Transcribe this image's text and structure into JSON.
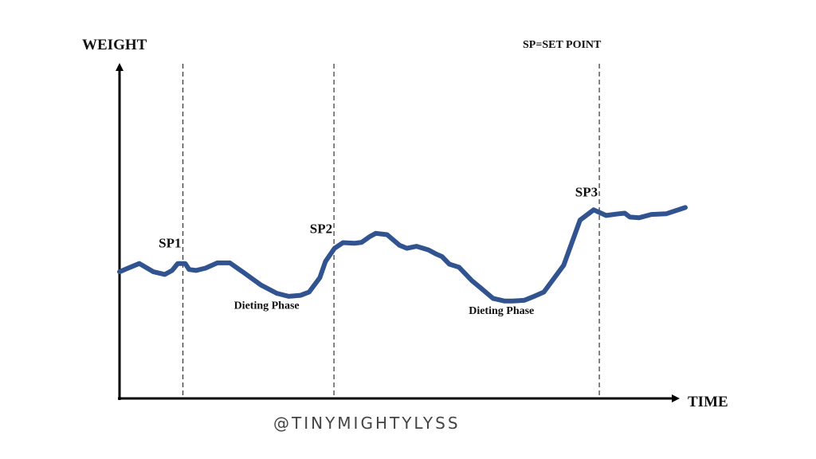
{
  "chart_data": {
    "type": "line",
    "ylabel": "WEIGHT",
    "xlabel": "TIME",
    "legend_note": "SP=SET POINT",
    "watermark": "@TINYMIGHTYLYSS",
    "line_color": "#31538F",
    "axis_color": "#000000",
    "grid": false,
    "xlim": [
      0,
      100
    ],
    "ylim": [
      0,
      100
    ],
    "set_points": [
      {
        "label": "SP1",
        "x": 11.2
      },
      {
        "label": "SP2",
        "x": 37.9
      },
      {
        "label": "SP3",
        "x": 84.8
      }
    ],
    "phase_labels": [
      {
        "label": "Dieting Phase",
        "x": 26,
        "y": 27
      },
      {
        "label": "Dieting Phase",
        "x": 67.5,
        "y": 25.5
      }
    ],
    "series": [
      {
        "x": [
          0,
          1.5,
          3.5,
          6,
          8,
          9.3,
          10.3,
          11,
          11.6,
          12.3,
          13.5,
          15.2,
          17.3,
          19.5,
          22,
          25,
          27.8,
          29.9,
          32,
          33.5,
          35.4,
          36.4,
          38,
          39.5,
          41.5,
          42.8,
          44.3,
          45.3,
          47.3,
          49.5,
          50.8,
          52.5,
          54.6,
          55.8,
          57,
          58.3,
          60,
          62.3,
          64,
          66,
          68,
          69.5,
          71.5,
          73,
          75,
          78.5,
          81.4,
          83.8,
          86,
          88.2,
          89.3,
          90.2,
          91.8,
          94,
          96.6,
          100
        ],
        "y": [
          38.2,
          39.3,
          40.7,
          38.2,
          37.4,
          38.6,
          40.7,
          40.7,
          40.7,
          38.9,
          38.6,
          39.3,
          40.9,
          40.9,
          37.9,
          34.2,
          31.7,
          30.8,
          31.1,
          32.1,
          36.4,
          41.3,
          45.3,
          47,
          46.8,
          47.1,
          48.9,
          49.8,
          49.4,
          46.2,
          45.3,
          45.9,
          44.8,
          43.7,
          42.8,
          40.5,
          39.6,
          35.5,
          33.1,
          30.2,
          29.4,
          29.4,
          29.6,
          30.6,
          32.1,
          40.2,
          53.8,
          56.9,
          55.2,
          55.7,
          55.9,
          54.7,
          54.5,
          55.5,
          55.7,
          57.6
        ]
      }
    ]
  }
}
